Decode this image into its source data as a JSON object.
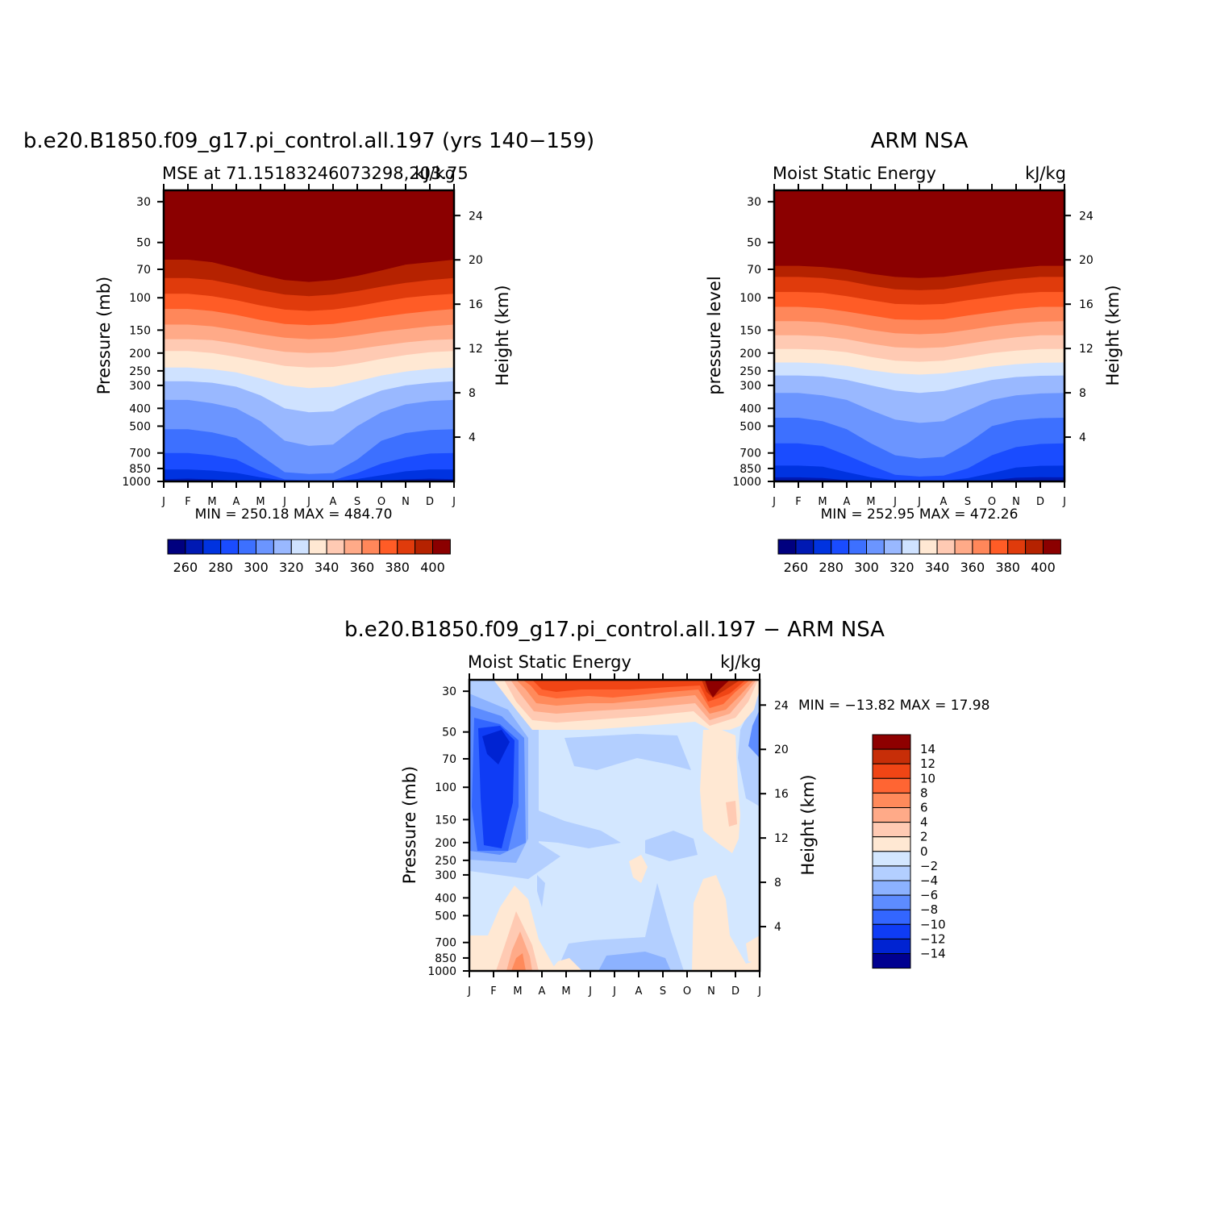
{
  "chart_data": [
    {
      "type": "heatmap",
      "panel": "model",
      "title": "b.e20.B1850.f09_g17.pi_control.all.197 (yrs 140−159)",
      "left_subtitle": "MSE at 71.15183246073298,203.75",
      "right_subtitle": "kJ/kg",
      "ylabel": "Pressure (mb)",
      "ylabel_right": "Height (km)",
      "x_ticks": [
        "J",
        "F",
        "M",
        "A",
        "M",
        "J",
        "J",
        "A",
        "S",
        "O",
        "N",
        "D",
        "J"
      ],
      "y_ticks": [
        "30",
        "50",
        "70",
        "100",
        "150",
        "200",
        "250",
        "300",
        "400",
        "500",
        "700",
        "850",
        "1000"
      ],
      "y_ticks_right": [
        "24",
        "20",
        "16",
        "12",
        "8",
        "4"
      ],
      "stats": "MIN = 250.18  MAX = 484.70",
      "colorbar_labels": [
        "260",
        "280",
        "300",
        "320",
        "340",
        "360",
        "380",
        "400"
      ],
      "ylim": [
        1000,
        26
      ],
      "surface_level": 1000,
      "boundaries_pressure": [
        [
          992,
          988,
          992,
          1000,
          1000,
          1000,
          1000,
          1000,
          1000,
          1000,
          992,
          988,
          992
        ],
        [
          972,
          965,
          975,
          990,
          1000,
          1000,
          1000,
          1000,
          1000,
          990,
          975,
          965,
          972
        ],
        [
          860,
          860,
          872,
          898,
          950,
          990,
          998,
          998,
          970,
          925,
          880,
          860,
          860
        ],
        [
          700,
          700,
          720,
          760,
          880,
          975,
          985,
          985,
          900,
          800,
          740,
          705,
          700
        ],
        [
          520,
          520,
          540,
          580,
          720,
          890,
          910,
          900,
          760,
          600,
          545,
          525,
          520
        ],
        [
          360,
          360,
          375,
          400,
          470,
          600,
          640,
          630,
          500,
          420,
          380,
          365,
          360
        ],
        [
          285,
          285,
          290,
          305,
          340,
          400,
          420,
          415,
          360,
          320,
          300,
          290,
          285
        ],
        [
          240,
          240,
          245,
          255,
          275,
          300,
          310,
          305,
          285,
          265,
          252,
          244,
          240
        ],
        [
          195,
          195,
          200,
          210,
          222,
          235,
          240,
          238,
          228,
          215,
          205,
          198,
          195
        ],
        [
          168,
          168,
          170,
          178,
          188,
          197,
          200,
          198,
          190,
          182,
          175,
          170,
          168
        ],
        [
          140,
          140,
          143,
          150,
          158,
          165,
          168,
          166,
          160,
          153,
          148,
          143,
          140
        ],
        [
          115,
          115,
          118,
          124,
          132,
          139,
          141,
          139,
          133,
          127,
          122,
          118,
          115
        ],
        [
          95,
          95,
          98,
          103,
          110,
          116,
          118,
          116,
          111,
          105,
          100,
          97,
          95
        ],
        [
          78,
          78,
          80,
          85,
          91,
          96,
          98,
          96,
          92,
          87,
          83,
          80,
          78
        ],
        [
          62,
          62,
          64,
          69,
          75,
          80,
          82,
          80,
          76,
          71,
          66,
          64,
          62
        ]
      ]
    },
    {
      "type": "heatmap",
      "panel": "obs",
      "title": "ARM NSA",
      "left_subtitle": "Moist Static Energy",
      "right_subtitle": "kJ/kg",
      "ylabel": "pressure level",
      "ylabel_right": "Height (km)",
      "x_ticks": [
        "J",
        "F",
        "M",
        "A",
        "M",
        "J",
        "J",
        "A",
        "S",
        "O",
        "N",
        "D",
        "J"
      ],
      "y_ticks": [
        "30",
        "50",
        "70",
        "100",
        "150",
        "200",
        "250",
        "300",
        "400",
        "500",
        "700",
        "850",
        "1000"
      ],
      "y_ticks_right": [
        "24",
        "20",
        "16",
        "12",
        "8",
        "4"
      ],
      "stats": "MIN = 252.95  MAX = 472.26",
      "colorbar_labels": [
        "260",
        "280",
        "300",
        "320",
        "340",
        "360",
        "380",
        "400"
      ],
      "ylim": [
        1000,
        26
      ],
      "surface_level": null,
      "boundaries_pressure": [
        [
          985,
          985,
          988,
          1000,
          1000,
          1000,
          1000,
          1000,
          1000,
          1000,
          993,
          988,
          985
        ],
        [
          950,
          950,
          958,
          985,
          1000,
          1000,
          1000,
          1000,
          1000,
          985,
          955,
          948,
          950
        ],
        [
          820,
          820,
          830,
          890,
          950,
          985,
          990,
          990,
          960,
          900,
          840,
          822,
          820
        ],
        [
          620,
          620,
          640,
          720,
          820,
          920,
          940,
          930,
          850,
          720,
          650,
          625,
          620
        ],
        [
          450,
          450,
          470,
          520,
          620,
          720,
          750,
          735,
          620,
          500,
          465,
          452,
          450
        ],
        [
          330,
          330,
          340,
          360,
          410,
          460,
          480,
          470,
          410,
          360,
          340,
          332,
          330
        ],
        [
          265,
          265,
          268,
          280,
          300,
          320,
          330,
          322,
          300,
          280,
          270,
          266,
          265
        ],
        [
          225,
          225,
          228,
          235,
          248,
          258,
          262,
          258,
          248,
          237,
          230,
          226,
          225
        ],
        [
          190,
          190,
          192,
          198,
          210,
          220,
          223,
          220,
          210,
          200,
          194,
          190,
          190
        ],
        [
          160,
          160,
          162,
          168,
          178,
          186,
          188,
          186,
          178,
          170,
          164,
          160,
          160
        ],
        [
          134,
          134,
          136,
          142,
          150,
          156,
          158,
          156,
          150,
          143,
          138,
          135,
          134
        ],
        [
          112,
          112,
          114,
          119,
          125,
          131,
          132,
          131,
          125,
          120,
          115,
          112,
          112
        ],
        [
          93,
          93,
          94,
          98,
          103,
          108,
          109,
          108,
          103,
          99,
          95,
          93,
          93
        ],
        [
          77,
          77,
          78,
          81,
          86,
          90,
          91,
          90,
          86,
          82,
          79,
          77,
          77
        ],
        [
          67,
          67,
          68,
          70,
          74,
          77,
          78,
          77,
          74,
          71,
          69,
          67,
          67
        ]
      ]
    },
    {
      "type": "heatmap",
      "panel": "diff",
      "title": "b.e20.B1850.f09_g17.pi_control.all.197 − ARM NSA",
      "left_subtitle": "Moist Static Energy",
      "right_subtitle": "kJ/kg",
      "ylabel": "Pressure (mb)",
      "ylabel_right": "Height (km)",
      "x_ticks": [
        "J",
        "F",
        "M",
        "A",
        "M",
        "J",
        "J",
        "A",
        "S",
        "O",
        "N",
        "D",
        "J"
      ],
      "y_ticks": [
        "30",
        "50",
        "70",
        "100",
        "150",
        "200",
        "250",
        "300",
        "400",
        "500",
        "700",
        "850",
        "1000"
      ],
      "y_ticks_right": [
        "24",
        "20",
        "16",
        "12",
        "8",
        "4"
      ],
      "stats": "MIN = −13.82 MAX =   17.98",
      "colorbar_labels": [
        "14",
        "12",
        "10",
        "8",
        "6",
        "4",
        "2",
        "0",
        "−2",
        "−4",
        "−6",
        "−8",
        "−10",
        "−12",
        "−14"
      ]
    }
  ]
}
